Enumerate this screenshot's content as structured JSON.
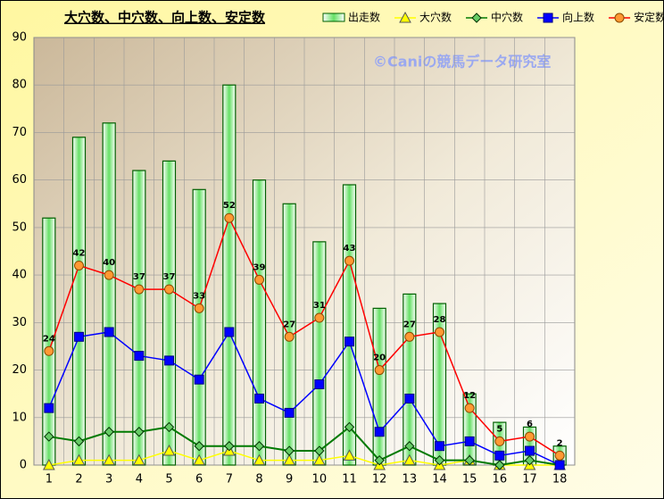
{
  "chart_data": {
    "type": "bar",
    "title": "大穴数、中穴数、向上数、安定数",
    "watermark": "©Caniの競馬データ研究室",
    "categories": [
      "1",
      "2",
      "3",
      "4",
      "5",
      "6",
      "7",
      "8",
      "9",
      "10",
      "11",
      "12",
      "13",
      "14",
      "15",
      "16",
      "17",
      "18"
    ],
    "ylim": [
      0,
      90
    ],
    "yticks": [
      0,
      10,
      20,
      30,
      40,
      50,
      60,
      70,
      80,
      90
    ],
    "grid": true,
    "series": [
      {
        "name": "出走数",
        "type": "bar",
        "color": "#008000",
        "values": [
          52,
          69,
          72,
          62,
          64,
          58,
          80,
          60,
          55,
          47,
          59,
          33,
          36,
          34,
          15,
          9,
          8,
          4
        ]
      },
      {
        "name": "大穴数",
        "type": "line",
        "marker": "triangle",
        "color": "#ffff00",
        "values": [
          0,
          1,
          1,
          1,
          3,
          1,
          3,
          1,
          1,
          1,
          2,
          0,
          1,
          0,
          1,
          0,
          0,
          0
        ]
      },
      {
        "name": "中穴数",
        "type": "line",
        "marker": "diamond",
        "color": "#007a00",
        "values": [
          6,
          5,
          7,
          7,
          8,
          4,
          4,
          4,
          3,
          3,
          8,
          1,
          4,
          1,
          1,
          0,
          1,
          0
        ]
      },
      {
        "name": "向上数",
        "type": "line",
        "marker": "square",
        "color": "#0000ff",
        "values": [
          12,
          27,
          28,
          23,
          22,
          18,
          28,
          14,
          11,
          17,
          26,
          7,
          14,
          4,
          5,
          2,
          3,
          0
        ]
      },
      {
        "name": "安定数",
        "type": "line",
        "marker": "circle",
        "color": "#ff0000",
        "values": [
          24,
          42,
          40,
          37,
          37,
          33,
          52,
          39,
          27,
          31,
          43,
          20,
          27,
          28,
          12,
          5,
          6,
          2
        ],
        "data_labels": true
      }
    ]
  }
}
